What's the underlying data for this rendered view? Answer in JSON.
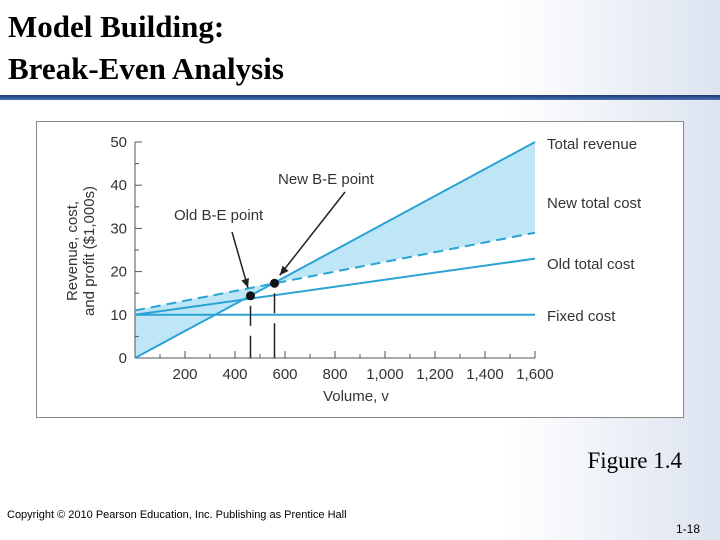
{
  "slide": {
    "title_line1": "Model Building:",
    "title_line2": "Break-Even Analysis",
    "caption": "Figure 1.4",
    "copyright": "Copyright © 2010 Pearson Education, Inc. Publishing as Prentice Hall",
    "page_number": "1-18"
  },
  "colors": {
    "line": "#2aa3d4",
    "fill": "#bfe6f7",
    "title_rule": "#1c3c78",
    "axis": "#555555"
  },
  "chart_data": {
    "type": "line",
    "title": "",
    "xlabel": "Volume, v",
    "ylabel_line1": "Revenue, cost,",
    "ylabel_line2": "and profit ($1,000s)",
    "xlim": [
      0,
      1600
    ],
    "ylim": [
      0,
      50
    ],
    "x_ticks": [
      200,
      400,
      600,
      800,
      1000,
      1200,
      1400,
      1600
    ],
    "x_tick_labels": [
      "200",
      "400",
      "600",
      "800",
      "1,000",
      "1,200",
      "1,400",
      "1,600"
    ],
    "y_ticks": [
      0,
      10,
      20,
      30,
      40,
      50
    ],
    "y_tick_labels": [
      "0",
      "10",
      "20",
      "30",
      "40",
      "50"
    ],
    "series": [
      {
        "name": "Total revenue",
        "style": "solid",
        "x": [
          0,
          1600
        ],
        "y": [
          0,
          50
        ]
      },
      {
        "name": "New total cost",
        "style": "dashed",
        "x": [
          0,
          1600
        ],
        "y": [
          11,
          29
        ]
      },
      {
        "name": "Old total cost",
        "style": "solid",
        "x": [
          0,
          1600
        ],
        "y": [
          10,
          23
        ]
      },
      {
        "name": "Fixed cost",
        "style": "solid",
        "x": [
          0,
          1600
        ],
        "y": [
          10,
          10
        ]
      }
    ],
    "annotations": [
      {
        "label": "Old B-E point",
        "x": 462,
        "y": 14.4
      },
      {
        "label": "New B-E point",
        "x": 558,
        "y": 17.3
      }
    ]
  }
}
